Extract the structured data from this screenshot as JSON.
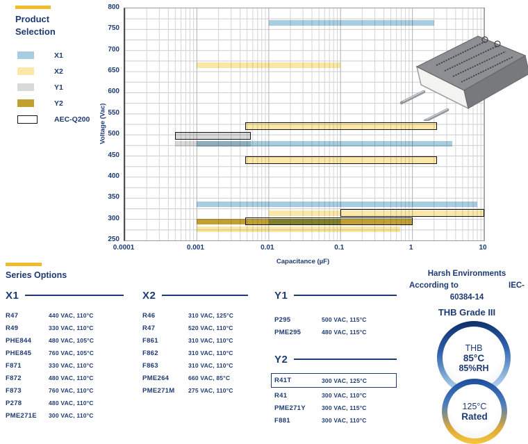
{
  "accent": {
    "gold": "#eebc2c",
    "navy": "#1d3a72"
  },
  "chart_data": {
    "type": "bar",
    "orientation": "horizontal-range",
    "legend_title_l1": "Product",
    "legend_title_l2": "Selection",
    "xlabel": "Capacitance (µF)",
    "ylabel": "Voltage (Vac)",
    "x_scale": "log",
    "x_tick_labels": [
      "0.0001",
      "0.001",
      "0.01",
      "0.1",
      "1",
      "10"
    ],
    "y_tick_labels": [
      "800",
      "750",
      "700",
      "650",
      "600",
      "550",
      "500",
      "450",
      "400",
      "350",
      "300",
      "250"
    ],
    "ylim": [
      250,
      800
    ],
    "y_tick_step": 50,
    "y_minor_step": 25,
    "grid": true,
    "legend": [
      {
        "label": "X1",
        "color": "#a8cde0"
      },
      {
        "label": "X2",
        "color": "#fce8a6"
      },
      {
        "label": "Y1",
        "color": "#d9d9d9"
      },
      {
        "label": "Y2",
        "color": "#c2a030"
      },
      {
        "label": "AEC-Q200",
        "color": "#ffffff",
        "outlined": true
      }
    ],
    "bars": [
      {
        "series": "X1",
        "voltage_vac": 760,
        "cap_uf_from": 0.01,
        "cap_uf_to": 2
      },
      {
        "series": "X2",
        "voltage_vac": 660,
        "cap_uf_from": 0.001,
        "cap_uf_to": 0.1
      },
      {
        "series": "X2",
        "voltage_vac": 520,
        "cap_uf_from": 0.0047,
        "cap_uf_to": 2.2,
        "aec_q200": true
      },
      {
        "series": "Y1",
        "voltage_vac": 500,
        "cap_uf_from": 0.0005,
        "cap_uf_to": 0.0056,
        "aec_q200": true
      },
      {
        "series": "Y1",
        "voltage_vac": 480,
        "cap_uf_from": 0.0005,
        "cap_uf_to": 0.0056
      },
      {
        "series": "X1",
        "voltage_vac": 480,
        "cap_uf_from": 0.001,
        "cap_uf_to": 3.6
      },
      {
        "series": "X2",
        "voltage_vac": 440,
        "cap_uf_from": 0.0047,
        "cap_uf_to": 2.2,
        "aec_q200": true
      },
      {
        "series": "X1",
        "voltage_vac": 330,
        "cap_uf_from": 0.001,
        "cap_uf_to": 8
      },
      {
        "series": "X2",
        "voltage_vac": 310,
        "cap_uf_from": 0.01,
        "cap_uf_to": 10
      },
      {
        "series": "X2",
        "voltage_vac": 310,
        "cap_uf_from": 0.1,
        "cap_uf_to": 10,
        "aec_q200": true,
        "outline_only": true
      },
      {
        "series": "Y2",
        "voltage_vac": 300,
        "cap_uf_from": 0.001,
        "cap_uf_to": 1
      },
      {
        "series": "Y2",
        "voltage_vac": 300,
        "cap_uf_from": 0.0047,
        "cap_uf_to": 1,
        "aec_q200": true,
        "outline_only": true
      },
      {
        "series": "X1",
        "voltage_vac": 300,
        "cap_uf_from": 0.01,
        "cap_uf_to": 0.1
      },
      {
        "series": "X2",
        "voltage_vac": 275,
        "cap_uf_from": 0.001,
        "cap_uf_to": 0.68
      }
    ]
  },
  "series_options": {
    "title": "Series Options",
    "groups": [
      {
        "name": "X1",
        "parts": [
          {
            "part": "R47",
            "spec": "440 VAC, 110°C"
          },
          {
            "part": "R49",
            "spec": "330 VAC, 110°C"
          },
          {
            "part": "PHE844",
            "spec": "480 VAC, 105°C"
          },
          {
            "part": "PHE845",
            "spec": "760 VAC, 105°C"
          },
          {
            "part": "F871",
            "spec": "330 VAC, 110°C"
          },
          {
            "part": "F872",
            "spec": "480 VAC, 110°C"
          },
          {
            "part": "F873",
            "spec": "760 VAC, 110°C"
          },
          {
            "part": "P278",
            "spec": "480 VAC, 110°C"
          },
          {
            "part": "PME271E",
            "spec": "300 VAC, 110°C"
          }
        ]
      },
      {
        "name": "X2",
        "parts": [
          {
            "part": "R46",
            "spec": "310 VAC, 125°C"
          },
          {
            "part": "R47",
            "spec": "520 VAC, 110°C"
          },
          {
            "part": "F861",
            "spec": "310 VAC, 110°C"
          },
          {
            "part": "F862",
            "spec": "310 VAC, 110°C"
          },
          {
            "part": "F863",
            "spec": "310 VAC, 110°C"
          },
          {
            "part": "PME264",
            "spec": "660 VAC, 85°C"
          },
          {
            "part": "PME271M",
            "spec": "275 VAC, 110°C"
          }
        ]
      },
      {
        "name": "Y1",
        "parts": [
          {
            "part": "P295",
            "spec": "500 VAC, 115°C"
          },
          {
            "part": "PME295",
            "spec": "480 VAC, 115°C"
          }
        ]
      },
      {
        "name": "Y2",
        "parts": [
          {
            "part": "R41T",
            "spec": "300 VAC, 125°C",
            "boxed": true
          },
          {
            "part": "R41",
            "spec": "300 VAC, 110°C"
          },
          {
            "part": "PME271Y",
            "spec": "300 VAC, 115°C"
          },
          {
            "part": "F881",
            "spec": "300 VAC, 110°C"
          }
        ]
      }
    ]
  },
  "harsh": {
    "line1": "Harsh Environments",
    "line2a": "According to",
    "line2b": "IEC-",
    "line3": "60384-14",
    "line4": "THB Grade III",
    "badge_thb": {
      "l1": "THB",
      "l2": "85°C",
      "l3": "85%RH"
    },
    "badge_rated": {
      "l1": "125°C",
      "l2": "Rated"
    }
  }
}
